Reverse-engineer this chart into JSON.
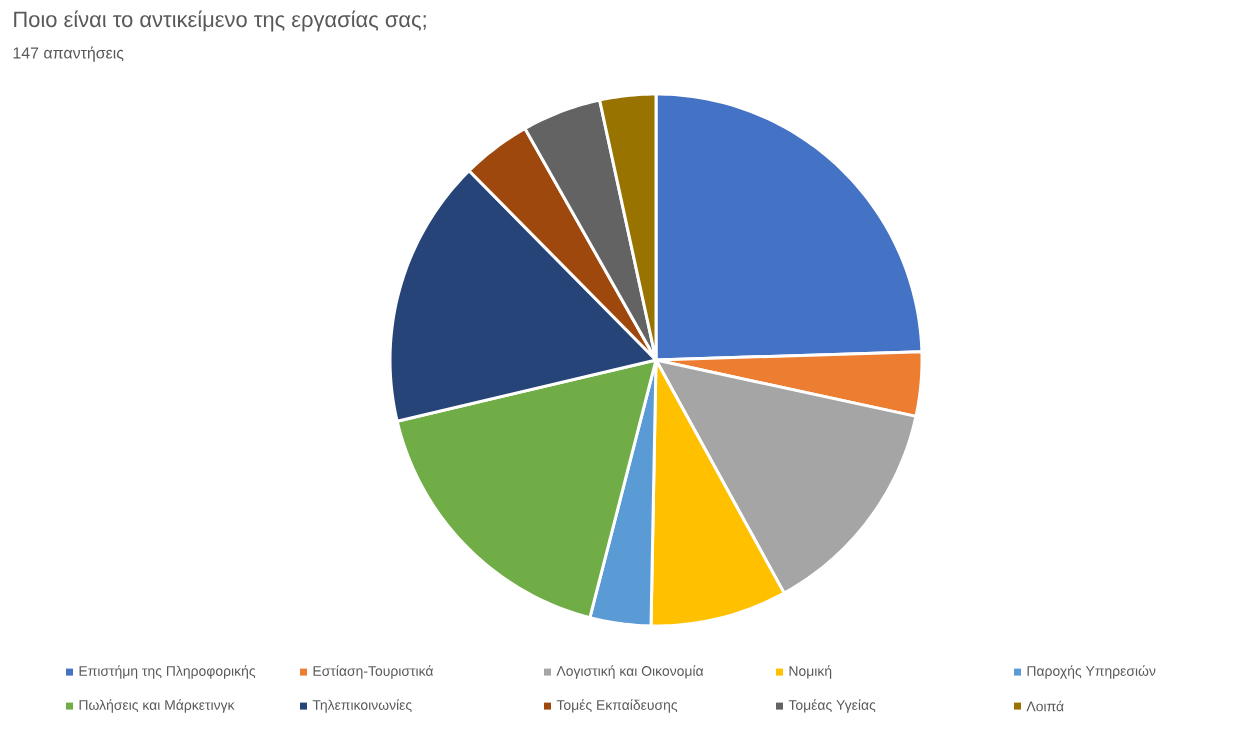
{
  "chart_data": {
    "type": "pie",
    "title": "Ποιο είναι το αντικείμενο της εργασίας σας;",
    "subtitle": "147 απαντήσεις",
    "categories": [
      "Επιστήμη της Πληροφορικής",
      "Εστίαση-Τουριστικά",
      "Λογιστική και Οικονομία",
      "Νομική",
      "Παροχής Υπηρεσιών",
      "Πωλήσεις και Μάρκετινγκ",
      "Τηλεπικοινωνίες",
      "Τομές Εκπαίδευσης",
      "Τομέας Υγείας",
      "Λοιπά"
    ],
    "values": [
      24.5,
      3.9,
      13.6,
      8.3,
      3.7,
      17.3,
      16.3,
      4.2,
      4.8,
      3.4
    ],
    "colors": [
      "#4472c4",
      "#ed7d31",
      "#a5a5a5",
      "#ffc000",
      "#5b9bd5",
      "#70ad47",
      "#264478",
      "#9e480e",
      "#636363",
      "#997300"
    ],
    "legend": "bottom"
  }
}
